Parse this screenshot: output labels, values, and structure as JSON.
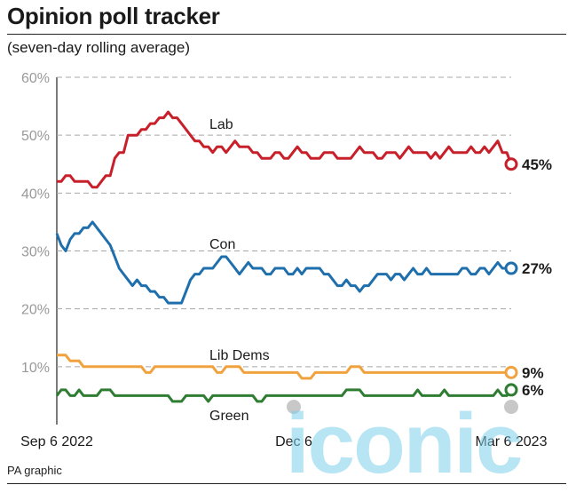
{
  "header": {
    "title": "Opinion poll tracker",
    "subtitle": "(seven-day rolling average)"
  },
  "footer": {
    "source": "PA graphic"
  },
  "watermark": {
    "text": "iconic"
  },
  "chart_data": {
    "type": "line",
    "ylim": [
      0,
      60
    ],
    "yticks": [
      10,
      20,
      30,
      40,
      50,
      60
    ],
    "ytick_labels": [
      "10%",
      "20%",
      "30%",
      "40%",
      "50%",
      "60%"
    ],
    "x_tick_labels": [
      "Sep 6 2022",
      "Dec 6",
      "Mar 6 2023"
    ],
    "x_range": [
      "2022-09-06",
      "2023-03-06"
    ],
    "grid": true,
    "series": [
      {
        "name": "Lab",
        "color": "#c8202a",
        "end_label": "45%",
        "values": [
          42,
          42,
          43,
          43,
          42,
          42,
          42,
          42,
          41,
          41,
          42,
          43,
          43,
          46,
          47,
          47,
          50,
          50,
          50,
          51,
          51,
          52,
          52,
          53,
          53,
          54,
          53,
          53,
          52,
          51,
          50,
          49,
          49,
          48,
          48,
          47,
          48,
          48,
          47,
          48,
          49,
          48,
          48,
          48,
          47,
          47,
          46,
          46,
          46,
          47,
          47,
          46,
          46,
          47,
          48,
          47,
          47,
          46,
          46,
          46,
          47,
          47,
          47,
          46,
          46,
          46,
          46,
          47,
          48,
          47,
          47,
          47,
          46,
          46,
          47,
          47,
          47,
          46,
          47,
          48,
          47,
          47,
          47,
          47,
          46,
          47,
          46,
          47,
          48,
          47,
          47,
          47,
          47,
          48,
          47,
          47,
          48,
          47,
          48,
          49,
          47,
          47,
          45
        ]
      },
      {
        "name": "Con",
        "color": "#1f6fad",
        "end_label": "27%",
        "values": [
          33,
          31,
          30,
          32,
          33,
          33,
          34,
          34,
          35,
          34,
          33,
          32,
          31,
          29,
          27,
          26,
          25,
          24,
          25,
          24,
          24,
          23,
          23,
          22,
          22,
          21,
          21,
          21,
          21,
          23,
          25,
          26,
          26,
          27,
          27,
          27,
          28,
          29,
          29,
          28,
          27,
          26,
          27,
          28,
          27,
          27,
          27,
          26,
          26,
          27,
          27,
          27,
          26,
          26,
          27,
          26,
          27,
          27,
          27,
          27,
          26,
          26,
          25,
          24,
          24,
          25,
          24,
          24,
          23,
          24,
          24,
          25,
          26,
          26,
          26,
          25,
          26,
          26,
          25,
          26,
          27,
          26,
          26,
          27,
          26,
          26,
          26,
          26,
          26,
          26,
          26,
          27,
          27,
          26,
          26,
          27,
          27,
          26,
          27,
          28,
          27,
          27,
          27
        ]
      },
      {
        "name": "Lib Dems",
        "color": "#f0a23f",
        "end_label": "9%",
        "values": [
          12,
          12,
          12,
          11,
          11,
          11,
          10,
          10,
          10,
          10,
          10,
          10,
          10,
          10,
          10,
          10,
          10,
          10,
          10,
          10,
          9,
          9,
          10,
          10,
          10,
          10,
          10,
          10,
          10,
          10,
          10,
          10,
          10,
          10,
          10,
          10,
          9,
          9,
          10,
          10,
          10,
          10,
          9,
          9,
          9,
          9,
          9,
          9,
          9,
          9,
          9,
          9,
          9,
          9,
          9,
          8,
          8,
          8,
          9,
          9,
          9,
          9,
          9,
          9,
          9,
          9,
          10,
          10,
          10,
          9,
          9,
          9,
          9,
          9,
          9,
          9,
          9,
          9,
          9,
          9,
          9,
          9,
          9,
          9,
          9,
          9,
          9,
          9,
          9,
          9,
          9,
          9,
          9,
          9,
          9,
          9,
          9,
          9,
          9,
          9,
          9,
          9,
          9
        ]
      },
      {
        "name": "Green",
        "color": "#2e7d32",
        "end_label": "6%",
        "values": [
          5,
          6,
          6,
          5,
          5,
          6,
          5,
          5,
          5,
          5,
          6,
          6,
          6,
          5,
          5,
          5,
          5,
          5,
          5,
          5,
          5,
          5,
          5,
          5,
          5,
          5,
          4,
          4,
          4,
          5,
          5,
          5,
          5,
          5,
          4,
          5,
          5,
          5,
          5,
          5,
          5,
          5,
          5,
          5,
          5,
          4,
          4,
          5,
          5,
          5,
          5,
          5,
          5,
          5,
          5,
          5,
          5,
          5,
          5,
          5,
          5,
          5,
          5,
          5,
          5,
          6,
          6,
          6,
          6,
          5,
          5,
          5,
          5,
          5,
          5,
          5,
          5,
          5,
          5,
          5,
          5,
          6,
          5,
          5,
          5,
          5,
          5,
          6,
          5,
          5,
          5,
          5,
          5,
          5,
          5,
          5,
          5,
          5,
          5,
          6,
          5,
          5,
          6
        ]
      }
    ]
  }
}
